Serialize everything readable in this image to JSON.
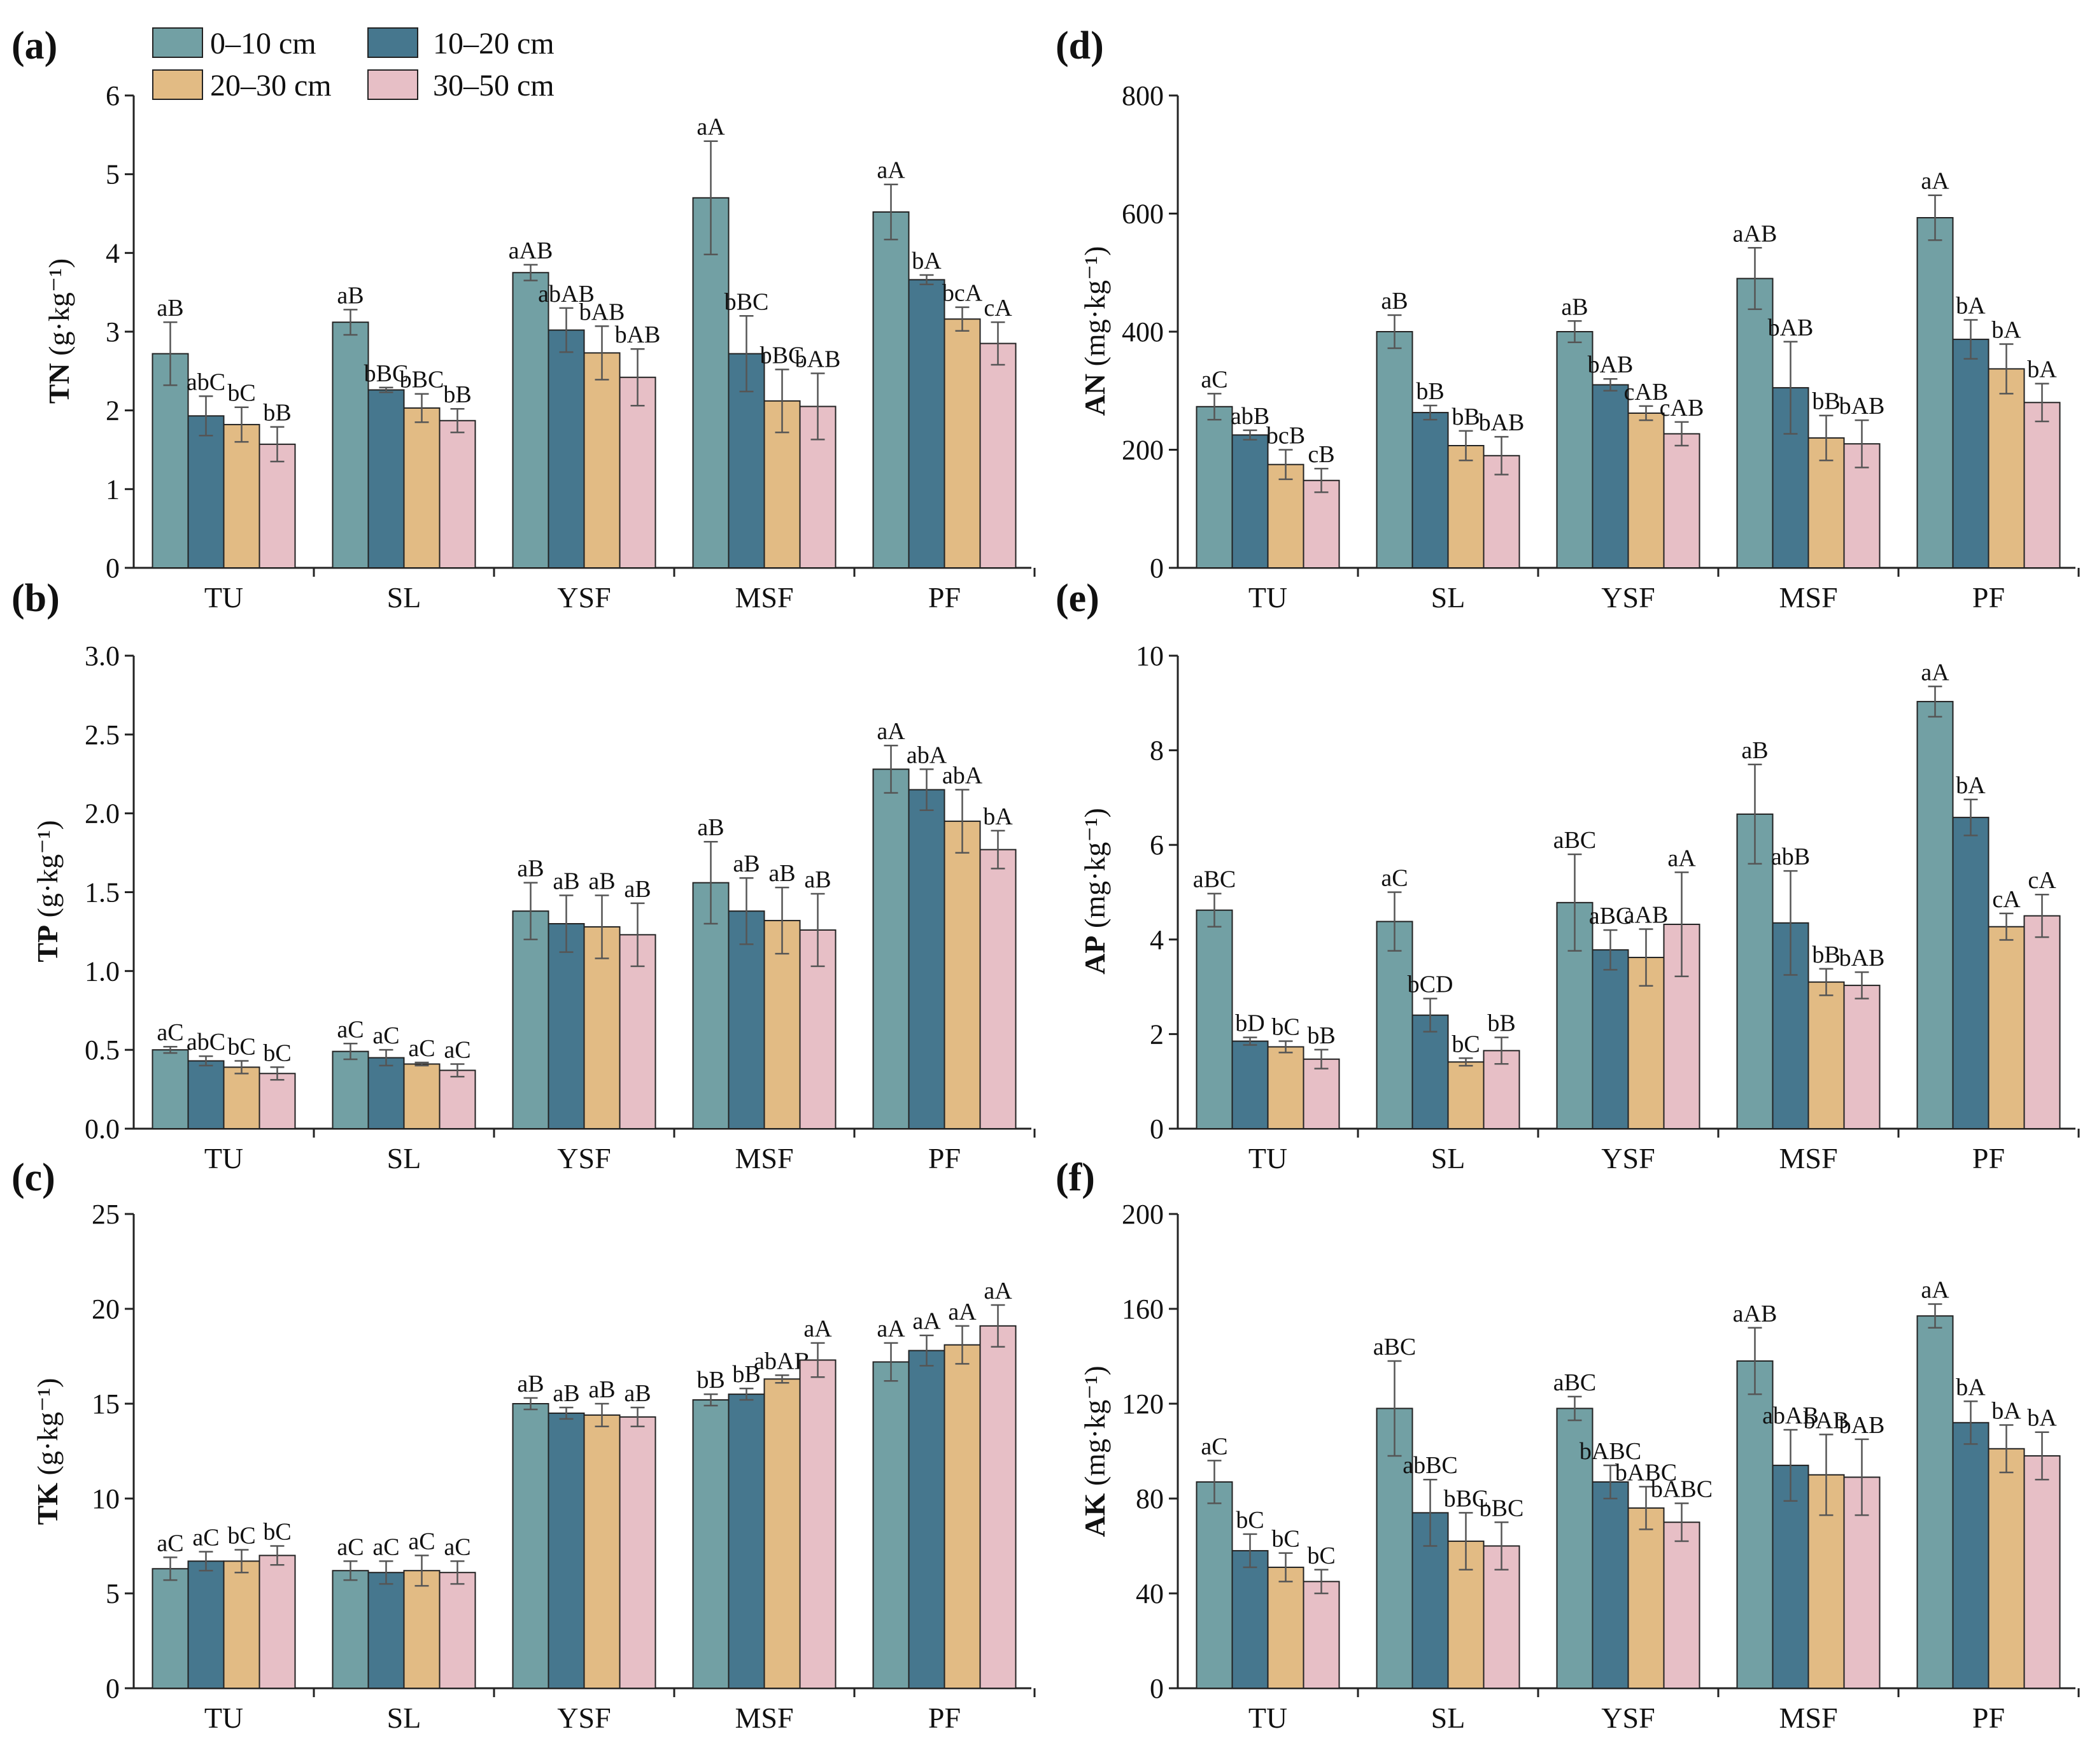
{
  "chart_data": [
    {
      "id": "a",
      "panel": "(a)",
      "type": "bar",
      "ylabel_main": "TN",
      "ylabel_unit": "(g·kg⁻¹)",
      "ylim": [
        0,
        6
      ],
      "yticks": [
        "0",
        "1",
        "2",
        "3",
        "4",
        "5",
        "6"
      ],
      "categories": [
        "TU",
        "SL",
        "YSF",
        "MSF",
        "PF"
      ],
      "series": [
        {
          "name": "0–10 cm",
          "values": [
            2.72,
            3.12,
            3.75,
            4.7,
            4.52
          ],
          "errors": [
            0.4,
            0.16,
            0.1,
            0.72,
            0.35
          ],
          "labels": [
            "aB",
            "aB",
            "aAB",
            "aA",
            "aA"
          ]
        },
        {
          "name": "10–20 cm",
          "values": [
            1.93,
            2.26,
            3.02,
            2.72,
            3.66
          ],
          "errors": [
            0.25,
            0.03,
            0.28,
            0.48,
            0.06
          ],
          "labels": [
            "abC",
            "bBC",
            "abAB",
            "bBC",
            "bA"
          ]
        },
        {
          "name": "20–30 cm",
          "values": [
            1.82,
            2.03,
            2.73,
            2.12,
            3.16
          ],
          "errors": [
            0.22,
            0.18,
            0.34,
            0.4,
            0.15
          ],
          "labels": [
            "bC",
            "bBC",
            "bAB",
            "bBC",
            "bcA"
          ]
        },
        {
          "name": "30–50 cm",
          "values": [
            1.57,
            1.87,
            2.42,
            2.05,
            2.85
          ],
          "errors": [
            0.22,
            0.15,
            0.36,
            0.42,
            0.27
          ],
          "labels": [
            "bB",
            "bB",
            "bAB",
            "bAB",
            "cA"
          ]
        }
      ]
    },
    {
      "id": "b",
      "panel": "(b)",
      "type": "bar",
      "ylabel_main": "TP",
      "ylabel_unit": "(g·kg⁻¹)",
      "ylim": [
        0,
        3
      ],
      "yticks": [
        "0.0",
        "0.5",
        "1.0",
        "1.5",
        "2.0",
        "2.5",
        "3.0"
      ],
      "categories": [
        "TU",
        "SL",
        "YSF",
        "MSF",
        "PF"
      ],
      "series": [
        {
          "name": "0–10 cm",
          "values": [
            0.5,
            0.49,
            1.38,
            1.56,
            2.28
          ],
          "errors": [
            0.02,
            0.05,
            0.18,
            0.26,
            0.15
          ],
          "labels": [
            "aC",
            "aC",
            "aB",
            "aB",
            "aA"
          ]
        },
        {
          "name": "10–20 cm",
          "values": [
            0.43,
            0.45,
            1.3,
            1.38,
            2.15
          ],
          "errors": [
            0.03,
            0.05,
            0.18,
            0.21,
            0.13
          ],
          "labels": [
            "abC",
            "aC",
            "aB",
            "aB",
            "abA"
          ]
        },
        {
          "name": "20–30 cm",
          "values": [
            0.39,
            0.41,
            1.28,
            1.32,
            1.95
          ],
          "errors": [
            0.04,
            0.01,
            0.2,
            0.21,
            0.2
          ],
          "labels": [
            "bC",
            "aC",
            "aB",
            "aB",
            "abA"
          ]
        },
        {
          "name": "30–50 cm",
          "values": [
            0.35,
            0.37,
            1.23,
            1.26,
            1.77
          ],
          "errors": [
            0.04,
            0.04,
            0.2,
            0.23,
            0.12
          ],
          "labels": [
            "bC",
            "aC",
            "aB",
            "aB",
            "bA"
          ]
        }
      ]
    },
    {
      "id": "c",
      "panel": "(c)",
      "type": "bar",
      "ylabel_main": "TK",
      "ylabel_unit": "(g·kg⁻¹)",
      "ylim": [
        0,
        25
      ],
      "yticks": [
        "0",
        "5",
        "10",
        "15",
        "20",
        "25"
      ],
      "categories": [
        "TU",
        "SL",
        "YSF",
        "MSF",
        "PF"
      ],
      "series": [
        {
          "name": "0–10 cm",
          "values": [
            6.3,
            6.2,
            15.0,
            15.2,
            17.2
          ],
          "errors": [
            0.6,
            0.5,
            0.3,
            0.3,
            1.0
          ],
          "labels": [
            "aC",
            "aC",
            "aB",
            "bB",
            "aA"
          ]
        },
        {
          "name": "10–20 cm",
          "values": [
            6.7,
            6.1,
            14.5,
            15.5,
            17.8
          ],
          "errors": [
            0.5,
            0.6,
            0.3,
            0.3,
            0.8
          ],
          "labels": [
            "aC",
            "aC",
            "aB",
            "bB",
            "aA"
          ]
        },
        {
          "name": "20–30 cm",
          "values": [
            6.7,
            6.2,
            14.4,
            16.3,
            18.1
          ],
          "errors": [
            0.6,
            0.8,
            0.6,
            0.2,
            1.0
          ],
          "labels": [
            "bC",
            "aC",
            "aB",
            "abAB",
            "aA"
          ]
        },
        {
          "name": "30–50 cm",
          "values": [
            7.0,
            6.1,
            14.3,
            17.3,
            19.1
          ],
          "errors": [
            0.5,
            0.6,
            0.5,
            0.9,
            1.1
          ],
          "labels": [
            "bC",
            "aC",
            "aB",
            "aA",
            "aA"
          ]
        }
      ]
    },
    {
      "id": "d",
      "panel": "(d)",
      "type": "bar",
      "ylabel_main": "AN",
      "ylabel_unit": "(mg·kg⁻¹)",
      "ylim": [
        0,
        800
      ],
      "yticks": [
        "0",
        "200",
        "400",
        "600",
        "800"
      ],
      "categories": [
        "TU",
        "SL",
        "YSF",
        "MSF",
        "PF"
      ],
      "series": [
        {
          "name": "0–10 cm",
          "values": [
            273,
            400,
            400,
            490,
            593
          ],
          "errors": [
            22,
            28,
            18,
            52,
            38
          ],
          "labels": [
            "aC",
            "aB",
            "aB",
            "aAB",
            "aA"
          ]
        },
        {
          "name": "10–20 cm",
          "values": [
            225,
            263,
            310,
            305,
            387
          ],
          "errors": [
            8,
            12,
            10,
            78,
            33
          ],
          "labels": [
            "abB",
            "bB",
            "bAB",
            "bAB",
            "bA"
          ]
        },
        {
          "name": "20–30 cm",
          "values": [
            175,
            207,
            262,
            220,
            337
          ],
          "errors": [
            25,
            25,
            12,
            38,
            42
          ],
          "labels": [
            "bcB",
            "bB",
            "cAB",
            "bB",
            "bA"
          ]
        },
        {
          "name": "30–50 cm",
          "values": [
            148,
            190,
            227,
            210,
            280
          ],
          "errors": [
            20,
            32,
            20,
            40,
            32
          ],
          "labels": [
            "cB",
            "bAB",
            "cAB",
            "bAB",
            "bA"
          ]
        }
      ]
    },
    {
      "id": "e",
      "panel": "(e)",
      "type": "bar",
      "ylabel_main": "AP",
      "ylabel_unit": "(mg·kg⁻¹)",
      "ylim": [
        0,
        10
      ],
      "yticks": [
        "0",
        "2",
        "4",
        "6",
        "8",
        "10"
      ],
      "categories": [
        "TU",
        "SL",
        "YSF",
        "MSF",
        "PF"
      ],
      "series": [
        {
          "name": "0–10 cm",
          "values": [
            4.62,
            4.38,
            4.78,
            6.65,
            9.03
          ],
          "errors": [
            0.35,
            0.62,
            1.02,
            1.05,
            0.32
          ],
          "labels": [
            "aBC",
            "aC",
            "aBC",
            "aB",
            "aA"
          ]
        },
        {
          "name": "10–20 cm",
          "values": [
            1.85,
            2.4,
            3.78,
            4.35,
            6.58
          ],
          "errors": [
            0.08,
            0.35,
            0.42,
            1.1,
            0.38
          ],
          "labels": [
            "bD",
            "bCD",
            "aBC",
            "abB",
            "bA"
          ]
        },
        {
          "name": "20–30 cm",
          "values": [
            1.73,
            1.41,
            3.62,
            3.1,
            4.27
          ],
          "errors": [
            0.12,
            0.08,
            0.6,
            0.28,
            0.28
          ],
          "labels": [
            "bC",
            "bC",
            "aAB",
            "bB",
            "cA"
          ]
        },
        {
          "name": "30–50 cm",
          "values": [
            1.47,
            1.65,
            4.32,
            3.03,
            4.5
          ],
          "errors": [
            0.2,
            0.28,
            1.1,
            0.28,
            0.45
          ],
          "labels": [
            "bB",
            "bB",
            "aA",
            "bAB",
            "cA"
          ]
        }
      ]
    },
    {
      "id": "f",
      "panel": "(f)",
      "type": "bar",
      "ylabel_main": "AK",
      "ylabel_unit": "(mg·kg⁻¹)",
      "ylim": [
        0,
        200
      ],
      "yticks": [
        "0",
        "40",
        "80",
        "120",
        "160",
        "200"
      ],
      "categories": [
        "TU",
        "SL",
        "YSF",
        "MSF",
        "PF"
      ],
      "series": [
        {
          "name": "0–10 cm",
          "values": [
            87,
            118,
            118,
            138,
            157
          ],
          "errors": [
            9,
            20,
            5,
            14,
            5
          ],
          "labels": [
            "aC",
            "aBC",
            "aBC",
            "aAB",
            "aA"
          ]
        },
        {
          "name": "10–20 cm",
          "values": [
            58,
            74,
            87,
            94,
            112
          ],
          "errors": [
            7,
            14,
            7,
            15,
            9
          ],
          "labels": [
            "bC",
            "abBC",
            "bABC",
            "abAB",
            "bA"
          ]
        },
        {
          "name": "20–30 cm",
          "values": [
            51,
            62,
            76,
            90,
            101
          ],
          "errors": [
            6,
            12,
            9,
            17,
            10
          ],
          "labels": [
            "bC",
            "bBC",
            "bABC",
            "bAB",
            "bA"
          ]
        },
        {
          "name": "30–50 cm",
          "values": [
            45,
            60,
            70,
            89,
            98
          ],
          "errors": [
            5,
            10,
            8,
            16,
            10
          ],
          "labels": [
            "bC",
            "bBC",
            "bABC",
            "bAB",
            "bA"
          ]
        }
      ]
    }
  ],
  "legend": {
    "entries": [
      {
        "label": "0–10 cm",
        "color": "#72A0A4"
      },
      {
        "label": "10–20 cm",
        "color": "#46778E"
      },
      {
        "label": "20–30 cm",
        "color": "#E2BB84"
      },
      {
        "label": "30–50 cm",
        "color": "#E7BFC6"
      }
    ]
  },
  "style": {
    "bar_stroke": "#222222",
    "error_color": "#555555",
    "axis_color": "#222222"
  }
}
